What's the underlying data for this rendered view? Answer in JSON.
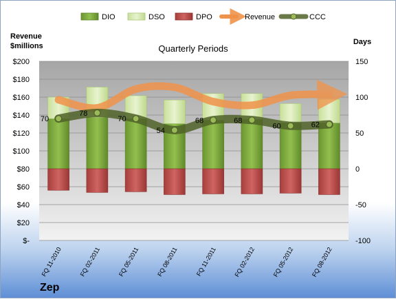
{
  "company": "Zep",
  "chart_data": {
    "type": "bar",
    "title": "Quarterly Periods",
    "left_axis_title": [
      "Revenue",
      "$millions"
    ],
    "right_axis_title": "Days",
    "categories": [
      "FQ 11-2010",
      "FQ 02-2011",
      "FQ 05-2011",
      "FQ 08-2011",
      "FQ 11-2011",
      "FQ 02-2012",
      "FQ 05-2012",
      "FQ 08-2012"
    ],
    "left_ylim": [
      0,
      200
    ],
    "left_ticks": [
      "$-",
      "$20",
      "$40",
      "$60",
      "$80",
      "$100",
      "$120",
      "$140",
      "$160",
      "$180",
      "$200"
    ],
    "right_ylim": [
      -100,
      150
    ],
    "right_ticks": [
      "-100",
      "-50",
      "0",
      "50",
      "100",
      "150"
    ],
    "grid": true,
    "legend_position": "top",
    "series": [
      {
        "name": "DIO",
        "axis": "right",
        "color": "#77a33a",
        "values": [
          70,
          72,
          70,
          63,
          68,
          69,
          64,
          64
        ]
      },
      {
        "name": "DSO",
        "axis": "right",
        "color": "#d4e8ac",
        "values": [
          30,
          42,
          32,
          33,
          37,
          36,
          27,
          33
        ]
      },
      {
        "name": "DPO",
        "axis": "right",
        "color": "#c0504d",
        "values": [
          -30,
          -33,
          -32,
          -36,
          -35,
          -35,
          -34,
          -36
        ]
      },
      {
        "name": "Revenue",
        "axis": "left",
        "color": "#f0934a",
        "values": [
          157,
          148,
          169,
          171,
          155,
          151,
          162,
          163
        ]
      },
      {
        "name": "CCC",
        "axis": "right",
        "color": "#4f6228",
        "values": [
          70,
          78,
          70,
          54,
          68,
          68,
          60,
          62
        ],
        "labels": [
          "70",
          "78",
          "70",
          "54",
          "68",
          "68",
          "60",
          "62"
        ]
      }
    ]
  }
}
